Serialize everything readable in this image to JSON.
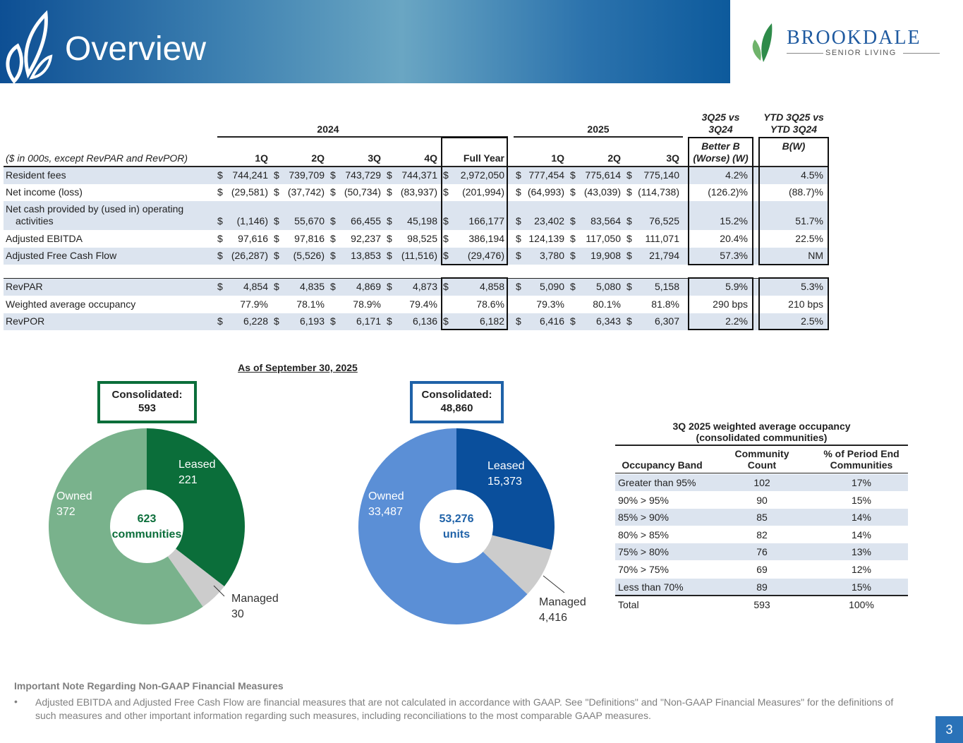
{
  "header": {
    "title": "Overview",
    "logo_name": "BROOKDALE",
    "logo_sub": "SENIOR LIVING"
  },
  "table": {
    "groups": [
      "2024",
      "2025",
      "3Q25 vs\n3Q24",
      "YTD 3Q25 vs\nYTD 3Q24"
    ],
    "columns": [
      "($ in 000s, except RevPAR and RevPOR)",
      "1Q",
      "2Q",
      "3Q",
      "4Q",
      "Full Year",
      "1Q",
      "2Q",
      "3Q",
      "Better B\n(Worse) (W)",
      "B(W)"
    ],
    "rows": [
      {
        "label": "Resident fees",
        "currency": "$",
        "values": [
          "744,241",
          "739,709",
          "743,729",
          "744,371",
          "2,972,050",
          "777,454",
          "775,614",
          "775,140"
        ],
        "change": [
          "4.2%",
          "4.5%"
        ]
      },
      {
        "label": "Net income (loss)",
        "currency": "$",
        "values": [
          "(29,581)",
          "(37,742)",
          "(50,734)",
          "(83,937)",
          "(201,994)",
          "(64,993)",
          "(43,039)",
          "(114,738)"
        ],
        "change": [
          "(126.2)%",
          "(88.7)%"
        ]
      },
      {
        "label": "Net cash provided by (used in) operating activities",
        "currency": "$",
        "values": [
          "(1,146)",
          "55,670",
          "66,455",
          "45,198",
          "166,177",
          "23,402",
          "83,564",
          "76,525"
        ],
        "change": [
          "15.2%",
          "51.7%"
        ]
      },
      {
        "label": "Adjusted EBITDA",
        "currency": "$",
        "values": [
          "97,616",
          "97,816",
          "92,237",
          "98,525",
          "386,194",
          "124,139",
          "117,050",
          "111,071"
        ],
        "change": [
          "20.4%",
          "22.5%"
        ]
      },
      {
        "label": "Adjusted Free Cash Flow",
        "currency": "$",
        "values": [
          "(26,287)",
          "(5,526)",
          "13,853",
          "(11,516)",
          "(29,476)",
          "3,780",
          "19,908",
          "21,794"
        ],
        "change": [
          "57.3%",
          "NM"
        ]
      },
      {
        "label": "RevPAR",
        "currency": "$",
        "values": [
          "4,854",
          "4,835",
          "4,869",
          "4,873",
          "4,858",
          "5,090",
          "5,080",
          "5,158"
        ],
        "change": [
          "5.9%",
          "5.3%"
        ]
      },
      {
        "label": "Weighted average occupancy",
        "values": [
          "77.9%",
          "78.1%",
          "78.9%",
          "79.4%",
          "78.6%",
          "79.3%",
          "80.1%",
          "81.8%"
        ],
        "change": [
          "290 bps",
          "210 bps"
        ]
      },
      {
        "label": "RevPOR",
        "currency": "$",
        "values": [
          "6,228",
          "6,193",
          "6,171",
          "6,136",
          "6,182",
          "6,416",
          "6,343",
          "6,307"
        ],
        "change": [
          "2.2%",
          "2.5%"
        ]
      }
    ]
  },
  "charts_title": "As of September 30, 2025",
  "chart_data": [
    {
      "type": "donut",
      "callout": "Consolidated:\n593",
      "center_label": "623\ncommunities",
      "categories": [
        "Leased",
        "Managed",
        "Owned"
      ],
      "values": [
        221,
        30,
        372
      ],
      "colors": [
        "#0b6e3a",
        "#cccccc",
        "#79b28c"
      ],
      "accent": "#0b6e3a"
    },
    {
      "type": "donut",
      "callout": "Consolidated:\n48,860",
      "center_label": "53,276\nunits",
      "categories": [
        "Leased",
        "Managed",
        "Owned"
      ],
      "values": [
        15373,
        4416,
        33487
      ],
      "value_labels": [
        "15,373",
        "4,416",
        "33,487"
      ],
      "colors": [
        "#0a4f9c",
        "#cccccc",
        "#5b8fd6"
      ],
      "accent": "#1f62a8"
    }
  ],
  "occupancy": {
    "title": "3Q 2025 weighted average occupancy\n(consolidated communities)",
    "columns": [
      "Occupancy Band",
      "Community\nCount",
      "% of Period End\nCommunities"
    ],
    "rows": [
      [
        "Greater than 95%",
        "102",
        "17%"
      ],
      [
        "90% > 95%",
        "90",
        "15%"
      ],
      [
        "85% > 90%",
        "85",
        "14%"
      ],
      [
        "80% > 85%",
        "82",
        "14%"
      ],
      [
        "75% > 80%",
        "76",
        "13%"
      ],
      [
        "70% > 75%",
        "69",
        "12%"
      ],
      [
        "Less than 70%",
        "89",
        "15%"
      ]
    ],
    "total": [
      "Total",
      "593",
      "100%"
    ]
  },
  "note": {
    "title": "Important Note Regarding Non-GAAP Financial Measures",
    "bullet": "Adjusted EBITDA and Adjusted Free Cash Flow are financial measures that are not calculated in accordance with GAAP. See \"Definitions\" and \"Non-GAAP Financial Measures\" for the definitions of such measures and other important information regarding such measures, including reconciliations to the most comparable GAAP measures."
  },
  "page_number": "3"
}
